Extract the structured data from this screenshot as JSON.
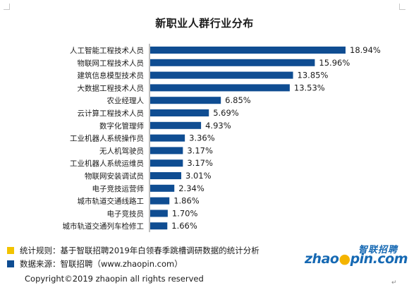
{
  "title": "新职业人群行业分布",
  "chart_data": {
    "type": "bar",
    "orientation": "horizontal",
    "categories": [
      "人工智能工程技术人员",
      "物联网工程技术人员",
      "建筑信息模型技术员",
      "大数据工程技术人员",
      "农业经理人",
      "云计算工程技术人员",
      "数字化管理师",
      "工业机器人系统操作员",
      "无人机驾驶员",
      "工业机器人系统运维员",
      "物联网安装调试员",
      "电子竞技运营师",
      "城市轨道交通线路工",
      "电子竞技员",
      "城市轨道交通列车检修工"
    ],
    "values": [
      18.94,
      15.96,
      13.85,
      13.53,
      6.85,
      5.69,
      4.93,
      3.36,
      3.17,
      3.17,
      3.01,
      2.34,
      1.86,
      1.7,
      1.66
    ],
    "value_labels": [
      "18.94%",
      "15.96%",
      "13.85%",
      "13.53%",
      "6.85%",
      "5.69%",
      "4.93%",
      "3.36%",
      "3.17%",
      "3.17%",
      "3.01%",
      "2.34%",
      "1.86%",
      "1.70%",
      "1.66%"
    ],
    "unit": "%",
    "bar_color": "#0f4d92",
    "grid": false,
    "legend": "none"
  },
  "notes": [
    {
      "text": "统计规则：基于智联招聘2019年白领春季跳槽调研数据的统计分析",
      "color": "#f2c300"
    },
    {
      "text": "数据来源：智联招聘（www.zhaopin.com）",
      "color": "#0f4d92"
    }
  ],
  "brand": {
    "name_cn": "智联招聘",
    "name_en_pre": "zhao",
    "name_en_dot": "●",
    "name_en_post": "pin.com"
  },
  "copyright": "Copyright©2019 zhaopin all rights reserved",
  "return_mark": "↵"
}
